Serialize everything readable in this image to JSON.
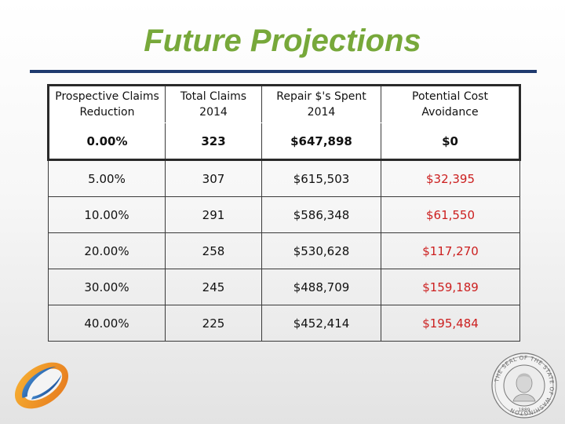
{
  "slide": {
    "title": "Future Projections"
  },
  "table": {
    "headers": [
      "Prospective Claims Reduction",
      "Total Claims 2014",
      "Repair $'s Spent 2014",
      "Potential Cost Avoidance"
    ],
    "rows": [
      [
        "0.00%",
        "323",
        "$647,898",
        "$0"
      ],
      [
        "5.00%",
        "307",
        "$615,503",
        "$32,395"
      ],
      [
        "10.00%",
        "291",
        "$586,348",
        "$61,550"
      ],
      [
        "20.00%",
        "258",
        "$530,628",
        "$117,270"
      ],
      [
        "30.00%",
        "245",
        "$488,709",
        "$159,189"
      ],
      [
        "40.00%",
        "225",
        "$452,414",
        "$195,484"
      ]
    ]
  },
  "colors": {
    "title": "#77a83a",
    "rule": "#1f3a6e",
    "savings_text": "#cc1f1f"
  },
  "seal": {
    "ring_text": "THE SEAL OF THE STATE OF WASHINGTON",
    "year": "1889"
  },
  "icons": {
    "left_logo": "orange-blue-swoosh-logo",
    "right_logo": "state-seal-logo"
  }
}
